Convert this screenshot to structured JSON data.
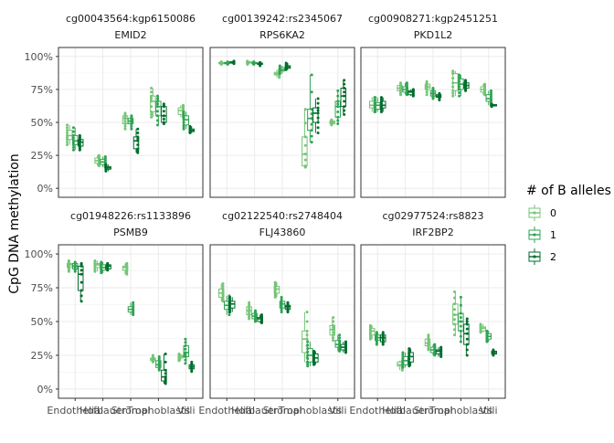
{
  "chart_data": {
    "type": "box",
    "ylabel": "CpG DNA methylation",
    "xlabel": "",
    "ylim": [
      0,
      1
    ],
    "yticks": [
      0,
      0.25,
      0.5,
      0.75,
      1.0
    ],
    "ytick_labels": [
      "0%",
      "25%",
      "50%",
      "75%",
      "100%"
    ],
    "categories": [
      "Endothelial",
      "Hofbauer",
      "Stromal",
      "Trophoblasts",
      "Villi"
    ],
    "grid": true,
    "legend": {
      "title": "# of B alleles",
      "placement": "right",
      "entries": [
        {
          "label": "0",
          "color": "#74C476"
        },
        {
          "label": "1",
          "color": "#31A354"
        },
        {
          "label": "2",
          "color": "#006D2C"
        }
      ]
    },
    "facets": [
      {
        "strip1": "cg00043564:kgp6150086",
        "strip2": "EMID2",
        "groups": [
          {
            "category": "Endothelial",
            "boxes": [
              [
                0.33,
                0.37,
                0.4,
                0.44,
                0.48
              ],
              [
                0.29,
                0.33,
                0.36,
                0.4,
                0.46
              ],
              [
                0.29,
                0.32,
                0.35,
                0.37,
                0.4
              ]
            ]
          },
          {
            "category": "Hofbauer",
            "boxes": [
              [
                0.17,
                0.19,
                0.21,
                0.23,
                0.25
              ],
              [
                0.16,
                0.18,
                0.2,
                0.22,
                0.24
              ],
              [
                0.13,
                0.145,
                0.155,
                0.165,
                0.18
              ]
            ]
          },
          {
            "category": "Stromal",
            "boxes": [
              [
                0.45,
                0.49,
                0.53,
                0.55,
                0.57
              ],
              [
                0.45,
                0.49,
                0.51,
                0.53,
                0.55
              ],
              [
                0.27,
                0.3,
                0.36,
                0.39,
                0.45
              ]
            ]
          },
          {
            "category": "Trophoblasts",
            "boxes": [
              [
                0.54,
                0.58,
                0.66,
                0.7,
                0.76
              ],
              [
                0.48,
                0.55,
                0.62,
                0.66,
                0.7
              ],
              [
                0.49,
                0.5,
                0.55,
                0.62,
                0.64
              ]
            ]
          },
          {
            "category": "Villi",
            "boxes": [
              [
                0.54,
                0.56,
                0.59,
                0.61,
                0.63
              ],
              [
                0.45,
                0.48,
                0.52,
                0.55,
                0.58
              ],
              [
                0.42,
                0.43,
                0.44,
                0.45,
                0.47
              ]
            ]
          }
        ]
      },
      {
        "strip1": "cg00139242:rs2345067",
        "strip2": "RPS6KA2",
        "groups": [
          {
            "category": "Endothelial",
            "boxes": [
              [
                0.94,
                0.945,
                0.95,
                0.955,
                0.96
              ],
              [
                0.94,
                0.945,
                0.95,
                0.955,
                0.96
              ],
              [
                0.945,
                0.95,
                0.955,
                0.96,
                0.965
              ]
            ]
          },
          {
            "category": "Hofbauer",
            "boxes": [
              [
                0.94,
                0.95,
                0.955,
                0.96,
                0.965
              ],
              [
                0.94,
                0.945,
                0.95,
                0.955,
                0.96
              ],
              [
                0.93,
                0.94,
                0.945,
                0.95,
                0.955
              ]
            ]
          },
          {
            "category": "Stromal",
            "boxes": [
              [
                0.84,
                0.86,
                0.87,
                0.88,
                0.9
              ],
              [
                0.87,
                0.89,
                0.9,
                0.915,
                0.93
              ],
              [
                0.9,
                0.91,
                0.92,
                0.93,
                0.95
              ]
            ]
          },
          {
            "category": "Trophoblasts",
            "boxes": [
              [
                0.16,
                0.17,
                0.26,
                0.39,
                0.6
              ],
              [
                0.35,
                0.44,
                0.53,
                0.6,
                0.86
              ],
              [
                0.42,
                0.5,
                0.57,
                0.61,
                0.68
              ]
            ]
          },
          {
            "category": "Villi",
            "boxes": [
              [
                0.48,
                0.49,
                0.5,
                0.51,
                0.52
              ],
              [
                0.49,
                0.54,
                0.62,
                0.66,
                0.74
              ],
              [
                0.56,
                0.62,
                0.7,
                0.76,
                0.82
              ]
            ]
          }
        ]
      },
      {
        "strip1": "cg00908271:kgp2451251",
        "strip2": "PKD1L2",
        "groups": [
          {
            "category": "Endothelial",
            "boxes": [
              [
                0.58,
                0.61,
                0.63,
                0.66,
                0.69
              ],
              [
                0.58,
                0.6,
                0.63,
                0.65,
                0.69
              ],
              [
                0.58,
                0.61,
                0.63,
                0.66,
                0.69
              ]
            ]
          },
          {
            "category": "Hofbauer",
            "boxes": [
              [
                0.71,
                0.74,
                0.76,
                0.78,
                0.8
              ],
              [
                0.71,
                0.73,
                0.75,
                0.77,
                0.8
              ],
              [
                0.7,
                0.71,
                0.73,
                0.74,
                0.75
              ]
            ]
          },
          {
            "category": "Stromal",
            "boxes": [
              [
                0.71,
                0.75,
                0.77,
                0.79,
                0.81
              ],
              [
                0.68,
                0.7,
                0.72,
                0.74,
                0.76
              ],
              [
                0.67,
                0.69,
                0.7,
                0.71,
                0.72
              ]
            ]
          },
          {
            "category": "Trophoblasts",
            "boxes": [
              [
                0.7,
                0.74,
                0.8,
                0.87,
                0.89
              ],
              [
                0.7,
                0.75,
                0.79,
                0.83,
                0.86
              ],
              [
                0.74,
                0.76,
                0.78,
                0.8,
                0.82
              ]
            ]
          },
          {
            "category": "Villi",
            "boxes": [
              [
                0.71,
                0.73,
                0.75,
                0.77,
                0.79
              ],
              [
                0.63,
                0.66,
                0.68,
                0.71,
                0.74
              ],
              [
                0.62,
                0.625,
                0.63,
                0.635,
                0.64
              ]
            ]
          }
        ]
      },
      {
        "strip1": "cg01948226:rs1133896",
        "strip2": "PSMB9",
        "groups": [
          {
            "category": "Endothelial",
            "boxes": [
              [
                0.87,
                0.9,
                0.92,
                0.93,
                0.95
              ],
              [
                0.87,
                0.89,
                0.91,
                0.93,
                0.94
              ],
              [
                0.65,
                0.73,
                0.85,
                0.91,
                0.93
              ]
            ]
          },
          {
            "category": "Hofbauer",
            "boxes": [
              [
                0.87,
                0.9,
                0.92,
                0.93,
                0.95
              ],
              [
                0.86,
                0.88,
                0.9,
                0.92,
                0.94
              ],
              [
                0.88,
                0.89,
                0.91,
                0.92,
                0.93
              ]
            ]
          },
          {
            "category": "Stromal",
            "boxes": [
              [
                0.85,
                0.88,
                0.9,
                0.91,
                0.93
              ],
              [
                0.55,
                0.57,
                0.59,
                0.61,
                0.64
              ],
              []
            ]
          },
          {
            "category": "Trophoblasts",
            "boxes": [
              [
                0.2,
                0.21,
                0.22,
                0.23,
                0.25
              ],
              [
                0.14,
                0.16,
                0.18,
                0.21,
                0.24
              ],
              [
                0.04,
                0.06,
                0.09,
                0.14,
                0.26
              ]
            ]
          },
          {
            "category": "Villi",
            "boxes": [
              [
                0.21,
                0.23,
                0.24,
                0.25,
                0.26
              ],
              [
                0.19,
                0.24,
                0.27,
                0.32,
                0.37
              ],
              [
                0.13,
                0.15,
                0.165,
                0.18,
                0.2
              ]
            ]
          }
        ]
      },
      {
        "strip1": "cg02122540:rs2748404",
        "strip2": "FLJ43860",
        "groups": [
          {
            "category": "Endothelial",
            "boxes": [
              [
                0.65,
                0.68,
                0.71,
                0.74,
                0.78
              ],
              [
                0.55,
                0.59,
                0.62,
                0.65,
                0.69
              ],
              [
                0.57,
                0.6,
                0.63,
                0.65,
                0.68
              ]
            ]
          },
          {
            "category": "Hofbauer",
            "boxes": [
              [
                0.52,
                0.55,
                0.58,
                0.61,
                0.64
              ],
              [
                0.5,
                0.52,
                0.54,
                0.56,
                0.58
              ],
              [
                0.49,
                0.5,
                0.52,
                0.53,
                0.55
              ]
            ]
          },
          {
            "category": "Stromal",
            "boxes": [
              [
                0.68,
                0.71,
                0.74,
                0.76,
                0.79
              ],
              [
                0.57,
                0.6,
                0.63,
                0.65,
                0.68
              ],
              [
                0.57,
                0.59,
                0.61,
                0.62,
                0.64
              ]
            ]
          },
          {
            "category": "Trophoblasts",
            "boxes": [
              [
                0.2,
                0.27,
                0.37,
                0.43,
                0.57
              ],
              [
                0.17,
                0.2,
                0.25,
                0.3,
                0.35
              ],
              [
                0.18,
                0.2,
                0.23,
                0.26,
                0.28
              ]
            ]
          },
          {
            "category": "Villi",
            "boxes": [
              [
                0.36,
                0.4,
                0.44,
                0.47,
                0.53
              ],
              [
                0.28,
                0.31,
                0.33,
                0.36,
                0.4
              ],
              [
                0.27,
                0.29,
                0.31,
                0.33,
                0.35
              ]
            ]
          }
        ]
      },
      {
        "strip1": "cg02977524:rs8823",
        "strip2": "IRF2BP2",
        "groups": [
          {
            "category": "Endothelial",
            "boxes": [
              [
                0.37,
                0.4,
                0.43,
                0.45,
                0.47
              ],
              [
                0.33,
                0.36,
                0.38,
                0.4,
                0.42
              ],
              [
                0.33,
                0.35,
                0.38,
                0.4,
                0.42
              ]
            ]
          },
          {
            "category": "Hofbauer",
            "boxes": [
              [
                0.14,
                0.17,
                0.18,
                0.2,
                0.21
              ],
              [
                0.16,
                0.18,
                0.21,
                0.24,
                0.27
              ],
              [
                0.17,
                0.2,
                0.24,
                0.27,
                0.3
              ]
            ]
          },
          {
            "category": "Stromal",
            "boxes": [
              [
                0.29,
                0.32,
                0.34,
                0.37,
                0.4
              ],
              [
                0.25,
                0.27,
                0.29,
                0.31,
                0.33
              ],
              [
                0.24,
                0.26,
                0.28,
                0.29,
                0.31
              ]
            ]
          },
          {
            "category": "Trophoblasts",
            "boxes": [
              [
                0.4,
                0.48,
                0.55,
                0.63,
                0.72
              ],
              [
                0.35,
                0.43,
                0.5,
                0.56,
                0.68
              ],
              [
                0.25,
                0.33,
                0.41,
                0.48,
                0.52
              ]
            ]
          },
          {
            "category": "Villi",
            "boxes": [
              [
                0.42,
                0.43,
                0.45,
                0.46,
                0.48
              ],
              [
                0.35,
                0.37,
                0.39,
                0.41,
                0.43
              ],
              [
                0.25,
                0.26,
                0.27,
                0.28,
                0.29
              ]
            ]
          }
        ]
      }
    ]
  }
}
